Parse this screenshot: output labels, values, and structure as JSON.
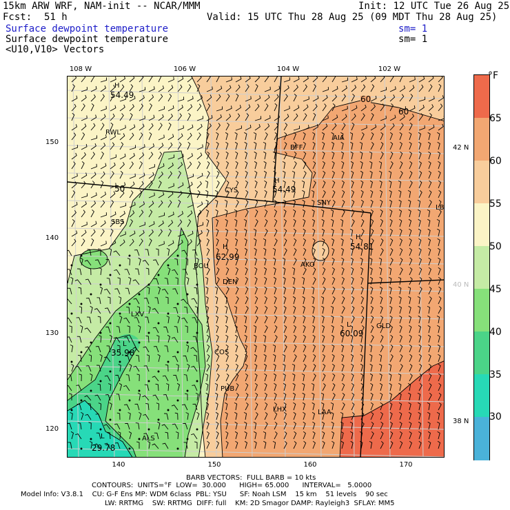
{
  "header": {
    "model": "15km ARW WRF, NAM-init -- NCAR/MMM",
    "init": "Init: 12 UTC Tue 26 Aug 25",
    "fcst_label": "Fcst:",
    "fcst_value": "51 h",
    "valid": "Valid: 15 UTC Thu 28 Aug 25 (09 MDT Thu 28 Aug 25)",
    "field1": "Surface dewpoint temperature",
    "sm1": "sm= 1",
    "field2": "Surface dewpoint temperature",
    "sm2": "sm= 1",
    "field3": "<U10,V10> Vectors"
  },
  "axes": {
    "lon_labels": [
      "108 W",
      "106 W",
      "104 W",
      "102 W"
    ],
    "lat_labels": [
      "42 N",
      "40 N",
      "38 N"
    ],
    "y_ticks": [
      "150",
      "140",
      "130",
      "120"
    ],
    "x_ticks": [
      "140",
      "150",
      "160",
      "170"
    ]
  },
  "colorbar": {
    "unit": "°F",
    "labels": [
      "65",
      "60",
      "55",
      "50",
      "45",
      "40",
      "35",
      "30"
    ],
    "colors": [
      "#ee6a4b",
      "#f2a772",
      "#f8cd9c",
      "#fbf4c6",
      "#c5eba5",
      "#86e07a",
      "#4bd488",
      "#27d9b6",
      "#4ab2d9"
    ]
  },
  "map": {
    "highs": [
      {
        "label": "H",
        "value": "54.49"
      },
      {
        "label": "H",
        "value": "54.49"
      },
      {
        "label": "H",
        "value": "62.99"
      },
      {
        "label": "H",
        "value": "54.81"
      }
    ],
    "lows": [
      {
        "label": "L",
        "value": "60.09"
      },
      {
        "label": "L",
        "value": "35.98"
      },
      {
        "label": "L",
        "value": "29.78"
      }
    ],
    "contour_labels": [
      "60",
      "60",
      "50"
    ],
    "stations": [
      "RWL",
      "BFF",
      "AIA",
      "CYS",
      "SNY",
      "SBS",
      "BOU",
      "AKO",
      "DEN",
      "LXV",
      "GLD",
      "COS",
      "PUB",
      "LHX",
      "LAA",
      "ALS",
      "LBF"
    ]
  },
  "footer": {
    "barb": "BARB VECTORS:  FULL BARB = 10 kts",
    "contours": "CONTOURS:  UNITS=°F  LOW=  30.000      HIGH= 65.000      INTERVAL=   5.0000",
    "model_info": "Model Info: V3.8.1    CU: G-F Ens MP: WDM 6class  PBL: YSU      SF: Noah LSM    15 km    51 levels    90 sec",
    "physics": "LW: RRTMG    SW: RRTMG  DIFF: full    KM: 2D Smagor DAMP: Rayleigh3  SFLAY: MM5"
  }
}
